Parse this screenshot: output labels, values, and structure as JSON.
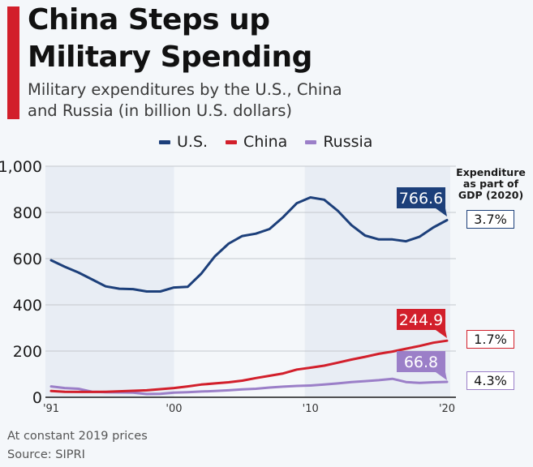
{
  "header": {
    "title_line1": "China Steps up",
    "title_line2": "Military Spending",
    "subtitle_line1": "Military expenditures by the U.S., China",
    "subtitle_line2": "and Russia (in billion U.S. dollars)"
  },
  "colors": {
    "accent": "#d21f2b",
    "us": "#1c3f7a",
    "china": "#d21f2b",
    "russia": "#9b7fc8",
    "background": "#f4f7fa",
    "band": "#e8edf4"
  },
  "gdp_panel": {
    "heading_line1": "Expenditure",
    "heading_line2": "as part of",
    "heading_line3": "GDP (2020)",
    "us": "3.7%",
    "china": "1.7%",
    "russia": "4.3%"
  },
  "footer": {
    "note": "At constant 2019 prices",
    "source": "Source: SIPRI"
  },
  "chart_data": {
    "type": "line",
    "title": "China Steps up Military Spending",
    "subtitle": "Military expenditures by the U.S., China and Russia (in billion U.S. dollars)",
    "xlabel": "",
    "ylabel": "",
    "ylim": [
      0,
      1000
    ],
    "yticks": [
      0,
      200,
      400,
      600,
      800,
      1000
    ],
    "ytick_labels": [
      "0",
      "200",
      "400",
      "600",
      "800",
      "1,000"
    ],
    "xlim": [
      1991,
      2020
    ],
    "xticks": [
      1991,
      2000,
      2010,
      2020
    ],
    "xtick_labels": [
      "'91",
      "'00",
      "'10",
      "'20"
    ],
    "grid": true,
    "legend": "top-center",
    "x": [
      1991,
      1992,
      1993,
      1994,
      1995,
      1996,
      1997,
      1998,
      1999,
      2000,
      2001,
      2002,
      2003,
      2004,
      2005,
      2006,
      2007,
      2008,
      2009,
      2010,
      2011,
      2012,
      2013,
      2014,
      2015,
      2016,
      2017,
      2018,
      2019,
      2020
    ],
    "series": [
      {
        "name": "U.S.",
        "values": [
          593,
          565,
          540,
          510,
          480,
          470,
          468,
          458,
          458,
          475,
          478,
          535,
          610,
          665,
          698,
          708,
          728,
          780,
          840,
          865,
          855,
          807,
          745,
          700,
          683,
          683,
          675,
          695,
          735,
          766.6
        ],
        "end_label": "766.6"
      },
      {
        "name": "China",
        "values": [
          27,
          24,
          23,
          23,
          24,
          26,
          28,
          30,
          35,
          40,
          47,
          55,
          60,
          65,
          72,
          83,
          93,
          103,
          120,
          128,
          137,
          150,
          163,
          175,
          188,
          198,
          210,
          222,
          236,
          244.9
        ],
        "end_label": "244.9"
      },
      {
        "name": "Russia",
        "values": [
          47,
          40,
          37,
          24,
          22,
          21,
          20,
          14,
          15,
          20,
          22,
          25,
          27,
          30,
          34,
          37,
          42,
          46,
          49,
          51,
          55,
          60,
          66,
          70,
          74,
          80,
          66,
          62,
          65,
          66.8
        ],
        "end_label": "66.8"
      }
    ],
    "annotations": [
      "Expenditure as part of GDP (2020): U.S. 3.7%, China 1.7%, Russia 4.3%"
    ],
    "footnotes": [
      "At constant 2019 prices",
      "Source: SIPRI"
    ]
  }
}
